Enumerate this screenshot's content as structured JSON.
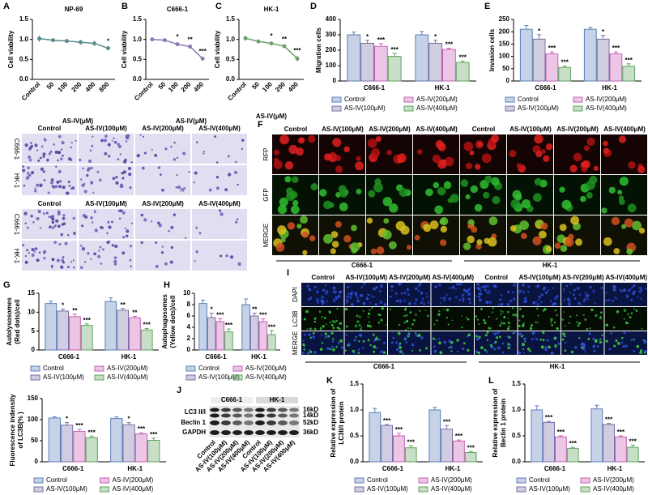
{
  "chart_data": [
    {
      "type": "line",
      "panel": "A",
      "title": "NP-69",
      "ylabel": [
        "Cell viability"
      ],
      "categories": [
        "Control",
        "50",
        "100",
        "200",
        "400",
        "800"
      ],
      "values": [
        1.02,
        0.98,
        0.96,
        0.93,
        0.9,
        0.78
      ],
      "errors": [
        0.08,
        0.03,
        0.04,
        0.06,
        0.06,
        0.04
      ],
      "annotations": [
        null,
        null,
        null,
        null,
        null,
        "*"
      ],
      "color": "#5a8a8a",
      "ylim": [
        0,
        1.5
      ],
      "yticks": [
        {
          "value": 0,
          "label": "0.0"
        },
        0.5,
        {
          "value": 1,
          "label": "1.0"
        },
        1.5
      ]
    },
    {
      "type": "line",
      "panel": "B",
      "title": "C666-1",
      "ylabel": [
        "Cell viability"
      ],
      "categories": [
        "Control",
        "50",
        "100",
        "200",
        "400"
      ],
      "values": [
        1.0,
        0.98,
        0.88,
        0.82,
        0.52
      ],
      "errors": [
        0.03,
        0.03,
        0.05,
        0.04,
        0.05
      ],
      "annotations": [
        null,
        null,
        "*",
        "**",
        "***"
      ],
      "color": "#8e7ab5",
      "ylim": [
        0,
        1.5
      ],
      "yticks": [
        {
          "value": 0,
          "label": "0.0"
        },
        0.5,
        {
          "value": 1,
          "label": "1.0"
        },
        1.5
      ]
    },
    {
      "type": "line",
      "panel": "C",
      "title": "HK-1",
      "ylabel": [
        "Cell viability"
      ],
      "xlabel": "AS-IV(μM)",
      "categories": [
        "Control",
        "50",
        "100",
        "200",
        "400"
      ],
      "values": [
        1.03,
        0.95,
        0.9,
        0.83,
        0.52
      ],
      "errors": [
        0.06,
        0.04,
        0.05,
        0.04,
        0.07
      ],
      "annotations": [
        null,
        null,
        "*",
        "**",
        "***"
      ],
      "color": "#6aa06a",
      "ylim": [
        0,
        1.5
      ],
      "yticks": [
        {
          "value": 0,
          "label": "0.0"
        },
        0.5,
        {
          "value": 1,
          "label": "1.0"
        },
        1.5
      ]
    },
    {
      "type": "bar",
      "panel": "D",
      "ylabel": [
        "Migration cells"
      ],
      "categories": [
        "C666-1",
        "HK-1"
      ],
      "ylim": [
        0,
        400
      ],
      "yticks": [
        0,
        100,
        200,
        300,
        400
      ],
      "series": [
        {
          "name": "Control",
          "color": "#5b7fb8",
          "values": [
            300,
            300
          ],
          "errors": [
            18,
            22
          ],
          "annotations": [
            null,
            null
          ]
        },
        {
          "name": "AS-IV(100μM)",
          "color": "#7c6fa8",
          "values": [
            245,
            245
          ],
          "errors": [
            20,
            20
          ],
          "annotations": [
            "*",
            "*"
          ]
        },
        {
          "name": "AS-IV(200μM)",
          "color": "#c65fb5",
          "values": [
            225,
            205
          ],
          "errors": [
            18,
            8
          ],
          "annotations": [
            "***",
            "***"
          ]
        },
        {
          "name": "AS-IV(400μM)",
          "color": "#5fa35f",
          "values": [
            160,
            120
          ],
          "errors": [
            20,
            10
          ],
          "annotations": [
            "***",
            "***"
          ]
        }
      ]
    },
    {
      "type": "bar",
      "panel": "E",
      "ylabel": [
        "Invasion cells"
      ],
      "categories": [
        "C666-1",
        "HK-1"
      ],
      "ylim": [
        0,
        250
      ],
      "yticks": [
        0,
        50,
        100,
        150,
        200,
        250
      ],
      "series": [
        {
          "name": "Control",
          "color": "#5b7fb8",
          "values": [
            210,
            210
          ],
          "errors": [
            15,
            8
          ],
          "annotations": [
            null,
            null
          ]
        },
        {
          "name": "AS-IV(100μM)",
          "color": "#7c6fa8",
          "values": [
            170,
            170
          ],
          "errors": [
            18,
            15
          ],
          "annotations": [
            "*",
            "*"
          ]
        },
        {
          "name": "AS-IV(200μM)",
          "color": "#c65fb5",
          "values": [
            110,
            110
          ],
          "errors": [
            8,
            8
          ],
          "annotations": [
            "***",
            "***"
          ]
        },
        {
          "name": "AS-IV(400μM)",
          "color": "#5fa35f",
          "values": [
            55,
            60
          ],
          "errors": [
            6,
            10
          ],
          "annotations": [
            "***",
            "***"
          ]
        }
      ]
    },
    {
      "type": "bar",
      "panel": "G",
      "ylabel": [
        "Autolysosomes",
        "(Red dots)/cell"
      ],
      "categories": [
        "C666-1",
        "HK-1"
      ],
      "ylim": [
        0,
        15
      ],
      "yticks": [
        0,
        5,
        10,
        15
      ],
      "series": [
        {
          "name": "Control",
          "color": "#5b7fb8",
          "values": [
            12.3,
            12.8
          ],
          "errors": [
            0.6,
            1.0
          ],
          "annotations": [
            null,
            null
          ]
        },
        {
          "name": "AS-IV(100μM)",
          "color": "#7c6fa8",
          "values": [
            10.3,
            10.5
          ],
          "errors": [
            0.5,
            0.5
          ],
          "annotations": [
            "*",
            "**"
          ]
        },
        {
          "name": "AS-IV(200μM)",
          "color": "#c65fb5",
          "values": [
            8.8,
            8.5
          ],
          "errors": [
            0.7,
            0.4
          ],
          "annotations": [
            "**",
            "**"
          ]
        },
        {
          "name": "AS-IV(400μM)",
          "color": "#5fa35f",
          "values": [
            6.5,
            5.3
          ],
          "errors": [
            0.4,
            0.4
          ],
          "annotations": [
            "***",
            "***"
          ]
        }
      ]
    },
    {
      "type": "bar",
      "panel": "H",
      "ylabel": [
        "Autophagosomes",
        "(Yellow dots)/cell"
      ],
      "categories": [
        "C666-1",
        "HK-1"
      ],
      "ylim": [
        0,
        10
      ],
      "yticks": [
        0,
        2,
        4,
        6,
        8,
        10
      ],
      "series": [
        {
          "name": "Control",
          "color": "#5b7fb8",
          "values": [
            8.2,
            8.0
          ],
          "errors": [
            0.6,
            1.0
          ],
          "annotations": [
            null,
            null
          ]
        },
        {
          "name": "AS-IV(100μM)",
          "color": "#7c6fa8",
          "values": [
            5.7,
            6.0
          ],
          "errors": [
            0.8,
            0.5
          ],
          "annotations": [
            "*",
            "**"
          ]
        },
        {
          "name": "AS-IV(200μM)",
          "color": "#c65fb5",
          "values": [
            5.0,
            5.0
          ],
          "errors": [
            0.5,
            0.5
          ],
          "annotations": [
            "***",
            "***"
          ]
        },
        {
          "name": "AS-IV(400μM)",
          "color": "#5fa35f",
          "values": [
            3.2,
            2.7
          ],
          "errors": [
            0.5,
            0.7
          ],
          "annotations": [
            "***",
            "***"
          ]
        }
      ]
    },
    {
      "type": "bar",
      "ylabel": [
        "Fluorescence indensity",
        "of LC3B(% )"
      ],
      "categories": [
        "C666-1",
        "HK-1"
      ],
      "ylim": [
        0,
        150
      ],
      "yticks": [
        0,
        50,
        100,
        150
      ],
      "series": [
        {
          "name": "Control",
          "color": "#5b7fb8",
          "values": [
            104,
            103
          ],
          "errors": [
            3,
            4
          ],
          "annotations": [
            null,
            null
          ]
        },
        {
          "name": "AS-IV(100μM)",
          "color": "#7c6fa8",
          "values": [
            87,
            88
          ],
          "errors": [
            6,
            5
          ],
          "annotations": [
            "*",
            "*"
          ]
        },
        {
          "name": "AS-IV(200μM)",
          "color": "#c65fb5",
          "values": [
            72,
            66
          ],
          "errors": [
            5,
            3
          ],
          "annotations": [
            "***",
            "***"
          ]
        },
        {
          "name": "AS-IV(400μM)",
          "color": "#5fa35f",
          "values": [
            57,
            51
          ],
          "errors": [
            4,
            5
          ],
          "annotations": [
            "***",
            "***"
          ]
        }
      ]
    },
    {
      "type": "bar",
      "panel": "K",
      "ylabel": [
        "Relative expression of",
        "LC3II/I protein"
      ],
      "categories": [
        "C666-1",
        "HK-1"
      ],
      "ylim": [
        0,
        1.5
      ],
      "yticks": [
        {
          "value": 0,
          "label": "0.0"
        },
        0.5,
        {
          "value": 1,
          "label": "1.0"
        },
        1.5
      ],
      "series": [
        {
          "name": "Control",
          "color": "#5b7fb8",
          "values": [
            0.95,
            1.0
          ],
          "errors": [
            0.08,
            0.05
          ],
          "annotations": [
            null,
            null
          ]
        },
        {
          "name": "AS-IV(100μM)",
          "color": "#7c6fa8",
          "values": [
            0.7,
            0.63
          ],
          "errors": [
            0.02,
            0.07
          ],
          "annotations": [
            "***",
            "***"
          ]
        },
        {
          "name": "AS-IV(200μM)",
          "color": "#c65fb5",
          "values": [
            0.5,
            0.4
          ],
          "errors": [
            0.05,
            0.02
          ],
          "annotations": [
            "***",
            "***"
          ]
        },
        {
          "name": "AS-IV(400μM)",
          "color": "#5fa35f",
          "values": [
            0.27,
            0.18
          ],
          "errors": [
            0.04,
            0.02
          ],
          "annotations": [
            "***",
            "***"
          ]
        }
      ]
    },
    {
      "type": "bar",
      "panel": "L",
      "ylabel": [
        "Relative expression of",
        "Beclin 1 protein"
      ],
      "categories": [
        "C666-1",
        "HK-1"
      ],
      "ylim": [
        0,
        1.5
      ],
      "yticks": [
        {
          "value": 0,
          "label": "0.0"
        },
        0.5,
        {
          "value": 1,
          "label": "1.0"
        },
        1.5
      ],
      "series": [
        {
          "name": "Control",
          "color": "#5b7fb8",
          "values": [
            1.0,
            1.02
          ],
          "errors": [
            0.08,
            0.07
          ],
          "annotations": [
            null,
            null
          ]
        },
        {
          "name": "AS-IV(100μM)",
          "color": "#7c6fa8",
          "values": [
            0.76,
            0.72
          ],
          "errors": [
            0.02,
            0.02
          ],
          "annotations": [
            "***",
            "***"
          ]
        },
        {
          "name": "AS-IV(200μM)",
          "color": "#c65fb5",
          "values": [
            0.48,
            0.48
          ],
          "errors": [
            0.02,
            0.02
          ],
          "annotations": [
            "***",
            "***"
          ]
        },
        {
          "name": "AS-IV(400μM)",
          "color": "#5fa35f",
          "values": [
            0.26,
            0.28
          ],
          "errors": [
            0.02,
            0.04
          ],
          "annotations": [
            "***",
            "***"
          ]
        }
      ]
    }
  ],
  "micrographs": {
    "headers": [
      "AS-IV(μM)",
      "AS-IV(μM)"
    ],
    "blocks": [
      {
        "columns": [
          "Control",
          "AS-IV(100μM)",
          "AS-IV(200μM)",
          "AS-IV(400μM)"
        ],
        "rows": [
          "C666-1",
          "HK-1"
        ]
      },
      {
        "columns": [
          "Control",
          "AS-IV(100μM)",
          "AS-IV(200μM)",
          "AS-IV(400μM)"
        ],
        "rows": [
          "C666-1",
          "HK-1"
        ]
      }
    ]
  },
  "panel_f": {
    "label": "F",
    "columns": [
      "Control",
      "AS-IV(100μM)",
      "AS-IV(200μM)",
      "AS-IV(400μM)",
      "Control",
      "AS-IV(100μM)",
      "AS-IV(200μM)",
      "AS-IV(400μM)"
    ],
    "rows": [
      "RFP",
      "GFP",
      "MERGE"
    ],
    "groups": [
      "C666-1",
      "HK-1"
    ]
  },
  "panel_i": {
    "label": "I",
    "columns": [
      "Control",
      "AS-IV(100μM)",
      "AS-IV(200μM)",
      "AS-IV(400μM)",
      "Control",
      "AS-IV(100μM)",
      "AS-IV(200μM)",
      "AS-IV(400μM)"
    ],
    "rows": [
      "DAPI",
      "LC3B",
      "MERGE"
    ],
    "groups": [
      "C666-1",
      "HK-1"
    ]
  },
  "panel_j": {
    "label": "J",
    "groups": [
      "C666-1",
      "HK-1"
    ],
    "rows": [
      "LC3 II/I",
      "Beclin 1",
      "GAPDH"
    ],
    "sizes": [
      "16kD",
      "14kD",
      "52kD",
      "36kD"
    ],
    "lanes": [
      "Control",
      "AS-IV(100μM)",
      "AS-IV(200μM)",
      "AS-IV(400μM)",
      "Control",
      "AS-IV(100μM)",
      "AS-IV(200μM)",
      "AS-IV(400μM)"
    ]
  }
}
